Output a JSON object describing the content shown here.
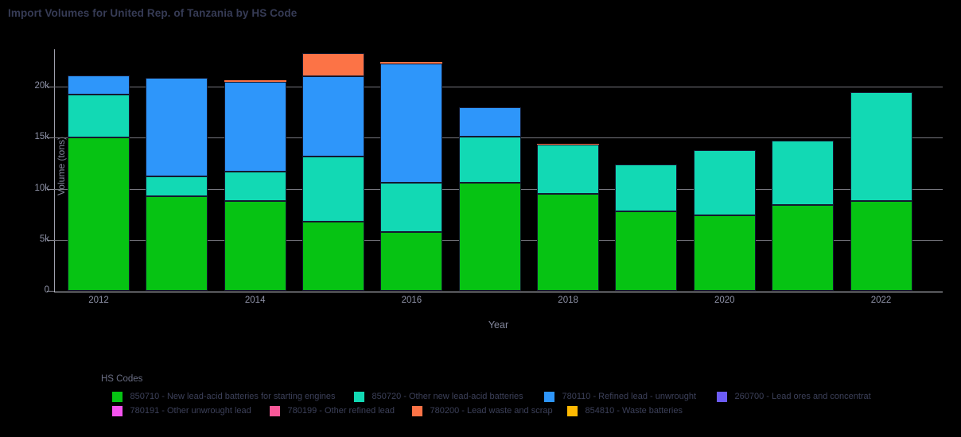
{
  "title": "Import Volumes for United Rep. of Tanzania by HS Code",
  "axes": {
    "x_title": "Year",
    "y_title": "Volume (tons)"
  },
  "legend": {
    "title": "HS Codes"
  },
  "chart_data": {
    "type": "bar",
    "stacked": true,
    "title": "Import Volumes for United Rep. of Tanzania by HS Code",
    "xlabel": "Year",
    "ylabel": "Volume (tons)",
    "categories": [
      "2012",
      "2013",
      "2014",
      "2015",
      "2016",
      "2017",
      "2018",
      "2019",
      "2020",
      "2021",
      "2022"
    ],
    "x_tick_shown_for": [
      0,
      2,
      4,
      6,
      8,
      10
    ],
    "y_ticks": [
      {
        "value": 0,
        "label": "0"
      },
      {
        "value": 5000,
        "label": "5k"
      },
      {
        "value": 10000,
        "label": "10k"
      },
      {
        "value": 15000,
        "label": "15k"
      },
      {
        "value": 20000,
        "label": "20k"
      }
    ],
    "ylim": [
      0,
      23600
    ],
    "grid": "horizontal",
    "legend_position": "bottom",
    "series": [
      {
        "code": "850710",
        "name": "850710 - New lead-acid batteries for starting engines",
        "color": "#06c313",
        "values": [
          15000,
          9300,
          8800,
          6750,
          5800,
          10600,
          9500,
          7800,
          7400,
          8400,
          8800
        ]
      },
      {
        "code": "850720",
        "name": "850720 - Other new lead-acid batteries",
        "color": "#12d9b4",
        "values": [
          4200,
          1950,
          2850,
          6400,
          4800,
          4500,
          4800,
          4600,
          6400,
          6300,
          10700
        ]
      },
      {
        "code": "780110",
        "name": "780110 - Refined lead - unwrought",
        "color": "#2e96fa",
        "values": [
          1900,
          9650,
          8850,
          7850,
          11700,
          2900,
          0,
          0,
          0,
          0,
          0
        ]
      },
      {
        "code": "260700",
        "name": "260700 - Lead ores and concentrat",
        "color": "#6c5cf7",
        "values": [
          0,
          0,
          0,
          0,
          0,
          0,
          0,
          0,
          0,
          0,
          0
        ]
      },
      {
        "code": "780191",
        "name": "780191 - Other unwrought lead",
        "color": "#f553ef",
        "values": [
          0,
          0,
          0,
          0,
          0,
          0,
          0,
          0,
          0,
          0,
          0
        ]
      },
      {
        "code": "780199",
        "name": "780199 - Other refined lead",
        "color": "#f85898",
        "values": [
          0,
          0,
          0,
          0,
          0,
          0,
          0,
          0,
          0,
          0,
          0
        ]
      },
      {
        "code": "780200",
        "name": "780200 - Lead waste and scrap",
        "color": "#fc7346",
        "values": [
          0,
          0,
          150,
          2300,
          120,
          0,
          130,
          0,
          0,
          0,
          0
        ]
      },
      {
        "code": "854810",
        "name": "854810 - Waste batteries",
        "color": "#feb902",
        "values": [
          0,
          0,
          0,
          0,
          0,
          0,
          0,
          0,
          0,
          0,
          0
        ]
      }
    ]
  }
}
